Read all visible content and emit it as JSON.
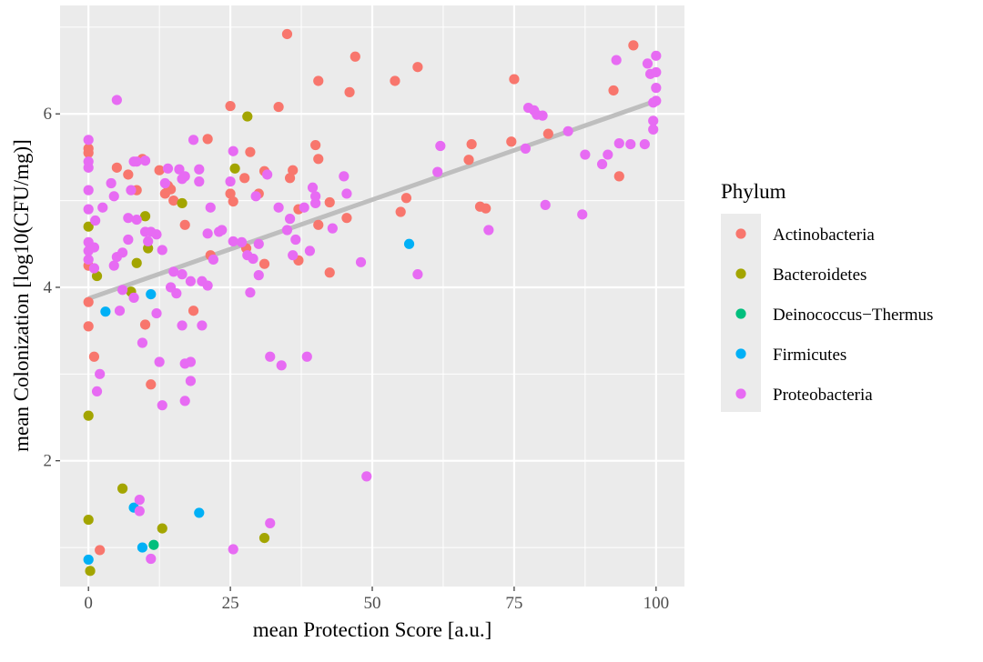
{
  "chart_data": {
    "type": "scatter",
    "xlabel": "mean Protection Score [a.u.]",
    "ylabel": "mean Colonization [log10(CFU/mg)]",
    "xlim": [
      -5,
      105
    ],
    "ylim": [
      0.55,
      7.25
    ],
    "x_ticks": [
      0,
      25,
      50,
      75,
      100
    ],
    "x_tick_labels": [
      "0",
      "25",
      "50",
      "75",
      "100"
    ],
    "y_ticks": [
      2,
      4,
      6
    ],
    "y_tick_labels": [
      "2",
      "4",
      "6"
    ],
    "grid": true,
    "background": "#ebebeb",
    "legend": {
      "title": "Phylum",
      "placement": "right",
      "entries": [
        {
          "label": "Actinobacteria",
          "color": "#f8766d"
        },
        {
          "label": "Bacteroidetes",
          "color": "#a3a500"
        },
        {
          "label": "Deinococcus−Thermus",
          "color": "#00bf7d"
        },
        {
          "label": "Firmicutes",
          "color": "#00b0f6"
        },
        {
          "label": "Proteobacteria",
          "color": "#e76bf3"
        }
      ]
    },
    "trend_line": {
      "type": "linear",
      "color": "#bebebe",
      "x": [
        0,
        100
      ],
      "y": [
        3.87,
        6.15
      ]
    },
    "series": [
      {
        "name": "Actinobacteria",
        "color": "#f8766d",
        "points": [
          [
            0,
            5.6
          ],
          [
            0,
            5.55
          ],
          [
            0,
            4.25
          ],
          [
            0,
            3.83
          ],
          [
            0,
            3.55
          ],
          [
            1,
            3.2
          ],
          [
            2,
            0.97
          ],
          [
            5,
            5.38
          ],
          [
            7,
            5.3
          ],
          [
            8.5,
            5.12
          ],
          [
            9.5,
            5.48
          ],
          [
            10,
            3.57
          ],
          [
            11,
            2.88
          ],
          [
            12.5,
            5.35
          ],
          [
            13.5,
            5.08
          ],
          [
            14,
            5.17
          ],
          [
            14.5,
            5.13
          ],
          [
            15,
            5.0
          ],
          [
            17,
            4.72
          ],
          [
            18.5,
            3.73
          ],
          [
            21,
            5.71
          ],
          [
            21.5,
            4.37
          ],
          [
            25,
            5.08
          ],
          [
            25,
            6.09
          ],
          [
            25.5,
            4.99
          ],
          [
            27.5,
            5.26
          ],
          [
            27.8,
            4.45
          ],
          [
            28.5,
            5.56
          ],
          [
            30,
            5.08
          ],
          [
            31,
            5.34
          ],
          [
            31,
            4.27
          ],
          [
            33.5,
            6.08
          ],
          [
            35,
            6.92
          ],
          [
            35.5,
            5.26
          ],
          [
            36,
            5.35
          ],
          [
            37,
            4.9
          ],
          [
            37,
            4.31
          ],
          [
            40,
            5.64
          ],
          [
            40.5,
            5.48
          ],
          [
            40.5,
            6.38
          ],
          [
            40.5,
            4.72
          ],
          [
            42.5,
            4.98
          ],
          [
            42.5,
            4.17
          ],
          [
            45.5,
            4.8
          ],
          [
            46,
            6.25
          ],
          [
            47,
            6.66
          ],
          [
            54,
            6.38
          ],
          [
            55,
            4.87
          ],
          [
            56,
            5.03
          ],
          [
            58,
            6.54
          ],
          [
            67,
            5.47
          ],
          [
            67.5,
            5.65
          ],
          [
            69,
            4.93
          ],
          [
            70,
            4.91
          ],
          [
            74.5,
            5.68
          ],
          [
            75,
            6.4
          ],
          [
            81,
            5.77
          ],
          [
            92.5,
            6.27
          ],
          [
            93.5,
            5.28
          ],
          [
            96,
            6.79
          ]
        ]
      },
      {
        "name": "Bacteroidetes",
        "color": "#a3a500",
        "points": [
          [
            0,
            4.7
          ],
          [
            0,
            2.52
          ],
          [
            0,
            1.32
          ],
          [
            0.3,
            0.73
          ],
          [
            1.5,
            4.13
          ],
          [
            6,
            1.68
          ],
          [
            7.5,
            3.95
          ],
          [
            8.5,
            4.28
          ],
          [
            10,
            4.82
          ],
          [
            10.5,
            4.45
          ],
          [
            13,
            1.22
          ],
          [
            16.5,
            4.97
          ],
          [
            25.8,
            5.37
          ],
          [
            28,
            5.97
          ],
          [
            31,
            1.11
          ]
        ]
      },
      {
        "name": "Deinococcus−Thermus",
        "color": "#00bf7d",
        "points": [
          [
            11.5,
            1.03
          ]
        ]
      },
      {
        "name": "Firmicutes",
        "color": "#00b0f6",
        "points": [
          [
            0,
            0.86
          ],
          [
            3,
            3.72
          ],
          [
            8,
            1.46
          ],
          [
            9.5,
            1.0
          ],
          [
            11,
            3.92
          ],
          [
            19.5,
            1.4
          ],
          [
            56.5,
            4.5
          ]
        ]
      },
      {
        "name": "Proteobacteria",
        "color": "#e76bf3",
        "points": [
          [
            0,
            5.7
          ],
          [
            0,
            5.45
          ],
          [
            0,
            5.38
          ],
          [
            0,
            5.12
          ],
          [
            0,
            4.9
          ],
          [
            0,
            4.52
          ],
          [
            0,
            4.42
          ],
          [
            0,
            4.32
          ],
          [
            1,
            4.46
          ],
          [
            1,
            4.22
          ],
          [
            1.2,
            4.77
          ],
          [
            1.5,
            2.8
          ],
          [
            2,
            3.0
          ],
          [
            2.5,
            4.92
          ],
          [
            4,
            5.2
          ],
          [
            4.5,
            5.05
          ],
          [
            4.5,
            4.25
          ],
          [
            5,
            6.16
          ],
          [
            5,
            4.35
          ],
          [
            5.5,
            3.73
          ],
          [
            6,
            4.4
          ],
          [
            6,
            3.97
          ],
          [
            7,
            4.8
          ],
          [
            7,
            4.55
          ],
          [
            7.5,
            5.12
          ],
          [
            8,
            5.45
          ],
          [
            8,
            3.88
          ],
          [
            8.5,
            5.45
          ],
          [
            8.5,
            4.78
          ],
          [
            9,
            1.55
          ],
          [
            9,
            1.42
          ],
          [
            9.5,
            3.36
          ],
          [
            10,
            5.46
          ],
          [
            10,
            4.64
          ],
          [
            10.5,
            4.53
          ],
          [
            11,
            4.64
          ],
          [
            11,
            0.87
          ],
          [
            12,
            4.61
          ],
          [
            12,
            3.7
          ],
          [
            12.5,
            3.14
          ],
          [
            13,
            2.64
          ],
          [
            13,
            4.43
          ],
          [
            13.5,
            5.2
          ],
          [
            14,
            5.37
          ],
          [
            14.5,
            4.0
          ],
          [
            15,
            4.18
          ],
          [
            15.5,
            3.93
          ],
          [
            16,
            5.36
          ],
          [
            16.5,
            5.25
          ],
          [
            16.5,
            4.15
          ],
          [
            16.5,
            3.56
          ],
          [
            17,
            5.28
          ],
          [
            17,
            3.12
          ],
          [
            17,
            2.69
          ],
          [
            18,
            3.14
          ],
          [
            18,
            2.92
          ],
          [
            18,
            4.07
          ],
          [
            18.5,
            5.7
          ],
          [
            19.5,
            5.22
          ],
          [
            19.5,
            5.36
          ],
          [
            20,
            4.07
          ],
          [
            20,
            3.56
          ],
          [
            21,
            4.62
          ],
          [
            21,
            4.02
          ],
          [
            21.5,
            4.92
          ],
          [
            22,
            4.32
          ],
          [
            23,
            4.64
          ],
          [
            23.5,
            4.66
          ],
          [
            25,
            5.22
          ],
          [
            25.5,
            5.57
          ],
          [
            25.5,
            4.53
          ],
          [
            25.5,
            0.98
          ],
          [
            27,
            4.52
          ],
          [
            28,
            4.37
          ],
          [
            28.5,
            3.94
          ],
          [
            29,
            4.33
          ],
          [
            29.5,
            5.05
          ],
          [
            30,
            4.5
          ],
          [
            30,
            4.14
          ],
          [
            31.5,
            5.3
          ],
          [
            32,
            3.2
          ],
          [
            32,
            1.28
          ],
          [
            33.5,
            4.92
          ],
          [
            34,
            3.1
          ],
          [
            35,
            4.66
          ],
          [
            35.5,
            4.79
          ],
          [
            36,
            4.37
          ],
          [
            36.5,
            4.55
          ],
          [
            38,
            4.92
          ],
          [
            38.5,
            3.2
          ],
          [
            39,
            4.42
          ],
          [
            39.5,
            5.15
          ],
          [
            40,
            5.05
          ],
          [
            40,
            4.97
          ],
          [
            43,
            4.68
          ],
          [
            45,
            5.28
          ],
          [
            45.5,
            5.08
          ],
          [
            48,
            4.29
          ],
          [
            49,
            1.82
          ],
          [
            58,
            4.15
          ],
          [
            61.5,
            5.33
          ],
          [
            62,
            5.63
          ],
          [
            70.5,
            4.66
          ],
          [
            77,
            5.6
          ],
          [
            77.5,
            6.07
          ],
          [
            78.5,
            6.04
          ],
          [
            79,
            5.99
          ],
          [
            80,
            5.98
          ],
          [
            80.5,
            4.95
          ],
          [
            84.5,
            5.8
          ],
          [
            87,
            4.84
          ],
          [
            87.5,
            5.53
          ],
          [
            90.5,
            5.42
          ],
          [
            91.5,
            5.53
          ],
          [
            93,
            6.62
          ],
          [
            93.5,
            5.66
          ],
          [
            95.5,
            5.65
          ],
          [
            98,
            5.65
          ],
          [
            98.5,
            6.58
          ],
          [
            99,
            6.46
          ],
          [
            99.5,
            6.13
          ],
          [
            99.5,
            5.92
          ],
          [
            99.5,
            5.82
          ],
          [
            100,
            6.67
          ],
          [
            100,
            6.48
          ],
          [
            100,
            6.3
          ],
          [
            100,
            6.15
          ]
        ]
      }
    ]
  }
}
